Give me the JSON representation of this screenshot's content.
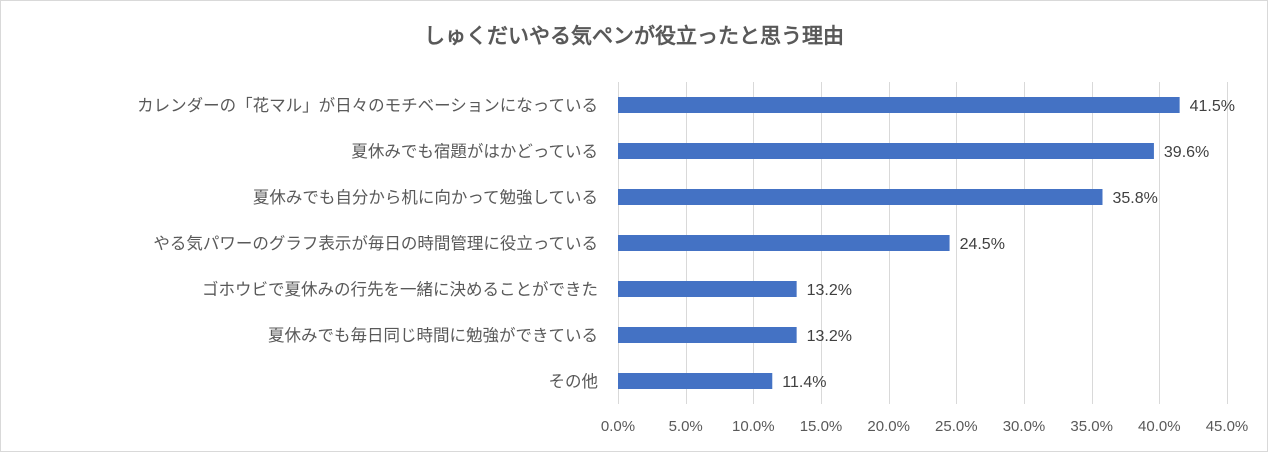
{
  "chart_data": {
    "type": "bar",
    "orientation": "horizontal",
    "title": "しゅくだいやる気ペンが役立ったと思う理由",
    "categories": [
      "カレンダーの「花マル」が日々のモチベーションになっている",
      "夏休みでも宿題がはかどっている",
      "夏休みでも自分から机に向かって勉強している",
      "やる気パワーのグラフ表示が毎日の時間管理に役立っている",
      "ゴホウビで夏休みの行先を一緒に決めることができた",
      "夏休みでも毎日同じ時間に勉強ができている",
      "その他"
    ],
    "values": [
      41.5,
      39.6,
      35.8,
      24.5,
      13.2,
      13.2,
      11.4
    ],
    "data_labels": [
      "41.5%",
      "39.6%",
      "35.8%",
      "24.5%",
      "13.2%",
      "13.2%",
      "11.4%"
    ],
    "xlim": [
      0,
      45
    ],
    "x_ticks": [
      0,
      5,
      10,
      15,
      20,
      25,
      30,
      35,
      40,
      45
    ],
    "x_tick_labels": [
      "0.0%",
      "5.0%",
      "10.0%",
      "15.0%",
      "20.0%",
      "25.0%",
      "30.0%",
      "35.0%",
      "40.0%",
      "45.0%"
    ],
    "xlabel": "",
    "ylabel": "",
    "grid": true,
    "bar_color": "#4472C4"
  }
}
